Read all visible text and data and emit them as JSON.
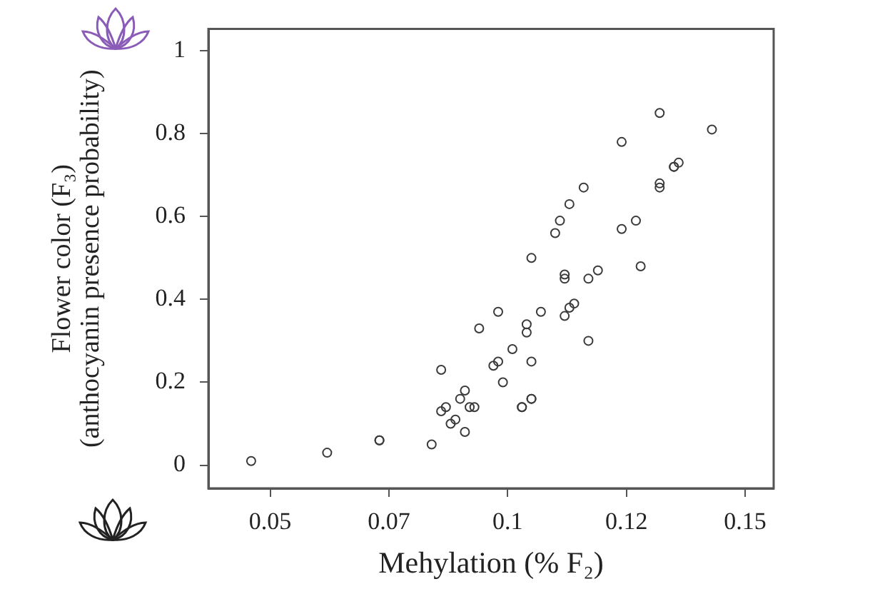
{
  "chart_data": {
    "type": "scatter",
    "xlabel": "Mehylation (% F₂)",
    "ylabel": [
      "Flower color (F₃)",
      "(anthocyanin presence probability)"
    ],
    "marker": "circle",
    "color": "#3a3a3a",
    "xlim": [
      0.037,
      0.156
    ],
    "ylim": [
      -0.056,
      1.053
    ],
    "xticks": [
      0.05,
      {
        "value": 0.075,
        "label": "0.07"
      },
      0.1,
      {
        "value": 0.125,
        "label": "0.12"
      },
      0.15
    ],
    "yticks": [
      0,
      0.2,
      0.4,
      0.6,
      0.8,
      1
    ],
    "x": [
      0.132,
      0.143,
      0.124,
      0.135,
      0.136,
      0.135,
      0.132,
      0.132,
      0.116,
      0.113,
      0.111,
      0.127,
      0.11,
      0.124,
      0.105,
      0.128,
      0.112,
      0.112,
      0.119,
      0.117,
      0.114,
      0.113,
      0.112,
      0.117,
      0.098,
      0.107,
      0.094,
      0.104,
      0.104,
      0.101,
      0.098,
      0.097,
      0.105,
      0.086,
      0.099,
      0.091,
      0.09,
      0.105,
      0.105,
      0.087,
      0.086,
      0.092,
      0.093,
      0.103,
      0.103,
      0.089,
      0.088,
      0.091,
      0.084,
      0.073,
      0.073,
      0.062,
      0.046
    ],
    "values": [
      0.85,
      0.81,
      0.78,
      0.72,
      0.73,
      0.72,
      0.68,
      0.67,
      0.67,
      0.63,
      0.59,
      0.59,
      0.56,
      0.57,
      0.5,
      0.48,
      0.46,
      0.45,
      0.47,
      0.45,
      0.39,
      0.38,
      0.36,
      0.3,
      0.37,
      0.37,
      0.33,
      0.34,
      0.32,
      0.28,
      0.25,
      0.24,
      0.25,
      0.23,
      0.2,
      0.18,
      0.16,
      0.16,
      0.16,
      0.14,
      0.13,
      0.14,
      0.14,
      0.14,
      0.14,
      0.11,
      0.1,
      0.08,
      0.05,
      0.06,
      0.06,
      0.03,
      0.01
    ]
  }
}
